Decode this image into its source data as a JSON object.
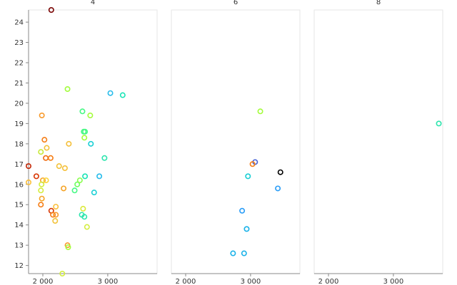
{
  "chart_data": {
    "type": "scatter",
    "facets": [
      {
        "title": "4",
        "points": [
          {
            "x": 2130,
            "y": 24.6,
            "color": "#7a0403"
          },
          {
            "x": 1780,
            "y": 16.9,
            "color": "#c42503"
          },
          {
            "x": 1900,
            "y": 16.4,
            "color": "#d93806"
          },
          {
            "x": 1780,
            "y": 16.1,
            "color": "#fabf3b"
          },
          {
            "x": 1985,
            "y": 19.4,
            "color": "#f89a2c"
          },
          {
            "x": 2025,
            "y": 18.2,
            "color": "#f57d15"
          },
          {
            "x": 2045,
            "y": 17.3,
            "color": "#f06b12"
          },
          {
            "x": 2120,
            "y": 17.3,
            "color": "#f57d15"
          },
          {
            "x": 2060,
            "y": 17.8,
            "color": "#f2c23a"
          },
          {
            "x": 1970,
            "y": 17.6,
            "color": "#c8e93b"
          },
          {
            "x": 2000,
            "y": 16.2,
            "color": "#f5a325"
          },
          {
            "x": 2050,
            "y": 16.2,
            "color": "#fad43a"
          },
          {
            "x": 1980,
            "y": 16.0,
            "color": "#d4ee40"
          },
          {
            "x": 1970,
            "y": 15.7,
            "color": "#d4ee40"
          },
          {
            "x": 1985,
            "y": 15.3,
            "color": "#f5a325"
          },
          {
            "x": 1970,
            "y": 15.0,
            "color": "#f57d15"
          },
          {
            "x": 2130,
            "y": 14.7,
            "color": "#d93806"
          },
          {
            "x": 2155,
            "y": 14.5,
            "color": "#f57d15"
          },
          {
            "x": 2200,
            "y": 14.5,
            "color": "#f89a2c"
          },
          {
            "x": 2200,
            "y": 14.9,
            "color": "#fabf3b"
          },
          {
            "x": 2190,
            "y": 14.2,
            "color": "#f2c23a"
          },
          {
            "x": 2250,
            "y": 16.9,
            "color": "#f2c23a"
          },
          {
            "x": 2340,
            "y": 16.8,
            "color": "#f5c03a"
          },
          {
            "x": 2320,
            "y": 15.8,
            "color": "#f5a325"
          },
          {
            "x": 2400,
            "y": 18.0,
            "color": "#f5c03a"
          },
          {
            "x": 2380,
            "y": 20.7,
            "color": "#a2fc3c"
          },
          {
            "x": 2380,
            "y": 13.0,
            "color": "#f89a2c"
          },
          {
            "x": 2390,
            "y": 12.9,
            "color": "#a4fc3c"
          },
          {
            "x": 2300,
            "y": 11.6,
            "color": "#d4ee40"
          },
          {
            "x": 2490,
            "y": 15.7,
            "color": "#46f884"
          },
          {
            "x": 2530,
            "y": 16.0,
            "color": "#6dfe62"
          },
          {
            "x": 2570,
            "y": 16.2,
            "color": "#8afe4f"
          },
          {
            "x": 2600,
            "y": 14.5,
            "color": "#2ee5ae"
          },
          {
            "x": 2640,
            "y": 14.4,
            "color": "#2ee5ae"
          },
          {
            "x": 2620,
            "y": 14.8,
            "color": "#dbe93a"
          },
          {
            "x": 2680,
            "y": 13.9,
            "color": "#d4ee40"
          },
          {
            "x": 2610,
            "y": 19.6,
            "color": "#46f884"
          },
          {
            "x": 2630,
            "y": 18.6,
            "color": "#46f884"
          },
          {
            "x": 2650,
            "y": 18.6,
            "color": "#46f884"
          },
          {
            "x": 2640,
            "y": 18.3,
            "color": "#a4fc3c"
          },
          {
            "x": 2730,
            "y": 19.4,
            "color": "#a4fc3c"
          },
          {
            "x": 2740,
            "y": 18.0,
            "color": "#1bcfd4"
          },
          {
            "x": 2650,
            "y": 16.4,
            "color": "#1ae4b6"
          },
          {
            "x": 2790,
            "y": 15.6,
            "color": "#1bd0d5"
          },
          {
            "x": 2870,
            "y": 16.4,
            "color": "#28bceb"
          },
          {
            "x": 2950,
            "y": 17.3,
            "color": "#2ee5ae"
          },
          {
            "x": 3040,
            "y": 20.5,
            "color": "#28bceb"
          },
          {
            "x": 3230,
            "y": 20.4,
            "color": "#1ae4b6"
          }
        ]
      },
      {
        "title": "6",
        "points": [
          {
            "x": 3150,
            "y": 19.6,
            "color": "#a4fc3c"
          },
          {
            "x": 3070,
            "y": 17.1,
            "color": "#4662d7"
          },
          {
            "x": 3030,
            "y": 17.0,
            "color": "#f57d15"
          },
          {
            "x": 3460,
            "y": 16.6,
            "color": "#000000"
          },
          {
            "x": 2960,
            "y": 16.4,
            "color": "#1bcfd4"
          },
          {
            "x": 3420,
            "y": 15.8,
            "color": "#2a9df7"
          },
          {
            "x": 2870,
            "y": 14.7,
            "color": "#2a9df7"
          },
          {
            "x": 2940,
            "y": 13.8,
            "color": "#1ab2e8"
          },
          {
            "x": 2730,
            "y": 12.6,
            "color": "#1ab2e8"
          },
          {
            "x": 2900,
            "y": 12.6,
            "color": "#1ab2e8"
          }
        ]
      },
      {
        "title": "8",
        "points": [
          {
            "x": 3700,
            "y": 19.0,
            "color": "#2ee5ae"
          }
        ]
      }
    ],
    "xlim": [
      1780,
      3760
    ],
    "ylim": [
      11.6,
      24.6
    ],
    "x_ticks": [
      {
        "value": 2000,
        "label": "2 000"
      },
      {
        "value": 3000,
        "label": "3 000"
      }
    ],
    "y_ticks": [
      {
        "value": 12,
        "label": "12"
      },
      {
        "value": 13,
        "label": "13"
      },
      {
        "value": 14,
        "label": "14"
      },
      {
        "value": 15,
        "label": "15"
      },
      {
        "value": 16,
        "label": "16"
      },
      {
        "value": 17,
        "label": "17"
      },
      {
        "value": 18,
        "label": "18"
      },
      {
        "value": 19,
        "label": "19"
      },
      {
        "value": 20,
        "label": "20"
      },
      {
        "value": 21,
        "label": "21"
      },
      {
        "value": 22,
        "label": "22"
      },
      {
        "value": 23,
        "label": "23"
      },
      {
        "value": 24,
        "label": "24"
      }
    ],
    "grid": false,
    "legend": "none"
  }
}
